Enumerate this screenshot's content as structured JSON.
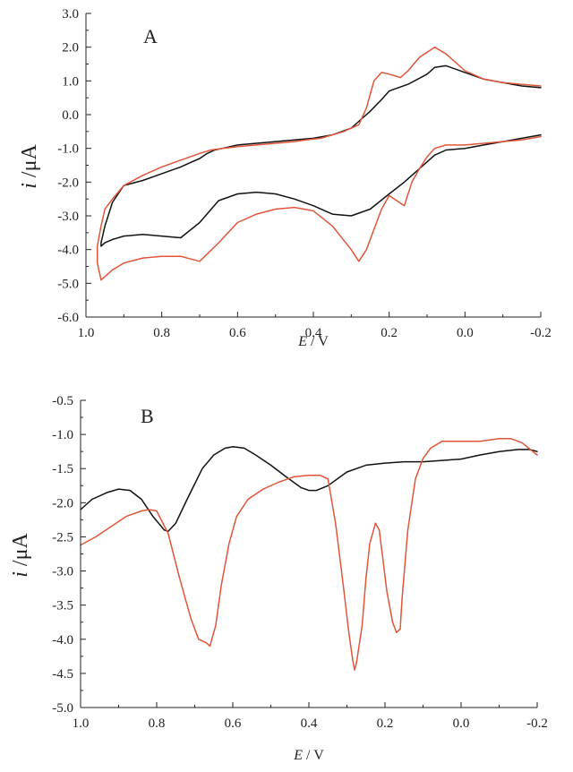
{
  "chart_data": [
    {
      "panel": "A",
      "type": "line",
      "label": "A",
      "xlabel_var": "E",
      "xlabel_unit": " / V",
      "ylabel_var": "i",
      "ylabel_unit": " /μA",
      "xlim": [
        1.0,
        -0.2
      ],
      "ylim": [
        -6.0,
        3.0
      ],
      "xticks": [
        "1.0",
        "0.8",
        "0.6",
        "0.4",
        "0.2",
        "0.0",
        "-0.2"
      ],
      "xtick_values": [
        1.0,
        0.8,
        0.6,
        0.4,
        0.2,
        0.0,
        -0.2
      ],
      "yticks": [
        "3.0",
        "2.0",
        "1.0",
        "0.0",
        "-1.0",
        "-2.0",
        "-3.0",
        "-4.0",
        "-5.0",
        "-6.0"
      ],
      "ytick_values": [
        3.0,
        2.0,
        1.0,
        0.0,
        -1.0,
        -2.0,
        -3.0,
        -4.0,
        -5.0,
        -6.0
      ],
      "series": [
        {
          "name": "black",
          "color": "#111111",
          "x": [
            -0.2,
            -0.15,
            -0.1,
            -0.05,
            0.0,
            0.05,
            0.08,
            0.12,
            0.16,
            0.2,
            0.25,
            0.3,
            0.35,
            0.4,
            0.45,
            0.5,
            0.55,
            0.6,
            0.65,
            0.7,
            0.75,
            0.8,
            0.85,
            0.9,
            0.93,
            0.95,
            0.96,
            0.96,
            0.95,
            0.93,
            0.9,
            0.85,
            0.8,
            0.75,
            0.72,
            0.7,
            0.68,
            0.66,
            0.64,
            0.62,
            0.6,
            0.55,
            0.5,
            0.45,
            0.4,
            0.35,
            0.3,
            0.28,
            0.25,
            0.22,
            0.2,
            0.15,
            0.1,
            0.08,
            0.05,
            0.0,
            -0.05,
            -0.1,
            -0.15,
            -0.2
          ],
          "y": [
            -0.6,
            -0.7,
            -0.8,
            -0.9,
            -1.0,
            -1.05,
            -1.2,
            -1.6,
            -2.0,
            -2.35,
            -2.8,
            -3.0,
            -2.95,
            -2.7,
            -2.5,
            -2.35,
            -2.3,
            -2.35,
            -2.55,
            -3.2,
            -3.65,
            -3.6,
            -3.55,
            -3.6,
            -3.7,
            -3.8,
            -3.9,
            -3.8,
            -3.3,
            -2.6,
            -2.1,
            -1.95,
            -1.75,
            -1.55,
            -1.4,
            -1.3,
            -1.15,
            -1.05,
            -1.0,
            -0.95,
            -0.9,
            -0.85,
            -0.8,
            -0.75,
            -0.7,
            -0.6,
            -0.4,
            -0.2,
            0.1,
            0.45,
            0.7,
            0.9,
            1.2,
            1.4,
            1.45,
            1.25,
            1.05,
            0.95,
            0.85,
            0.8
          ]
        },
        {
          "name": "red",
          "color": "#e0553a",
          "x": [
            -0.2,
            -0.15,
            -0.1,
            -0.05,
            0.0,
            0.05,
            0.08,
            0.1,
            0.12,
            0.14,
            0.16,
            0.18,
            0.2,
            0.22,
            0.24,
            0.26,
            0.28,
            0.3,
            0.35,
            0.4,
            0.45,
            0.5,
            0.55,
            0.6,
            0.65,
            0.7,
            0.75,
            0.8,
            0.85,
            0.9,
            0.93,
            0.95,
            0.96,
            0.97,
            0.97,
            0.96,
            0.95,
            0.93,
            0.9,
            0.85,
            0.8,
            0.75,
            0.7,
            0.67,
            0.64,
            0.6,
            0.55,
            0.5,
            0.45,
            0.42,
            0.38,
            0.35,
            0.32,
            0.3,
            0.28,
            0.26,
            0.24,
            0.22,
            0.2,
            0.17,
            0.15,
            0.12,
            0.08,
            0.05,
            0.0,
            -0.05,
            -0.1,
            -0.15,
            -0.2
          ],
          "y": [
            -0.65,
            -0.75,
            -0.8,
            -0.85,
            -0.9,
            -0.9,
            -1.0,
            -1.25,
            -1.6,
            -2.0,
            -2.7,
            -2.55,
            -2.4,
            -2.8,
            -3.4,
            -4.0,
            -4.35,
            -4.0,
            -3.3,
            -2.85,
            -2.75,
            -2.8,
            -2.95,
            -3.2,
            -3.8,
            -4.35,
            -4.2,
            -4.2,
            -4.25,
            -4.4,
            -4.6,
            -4.8,
            -4.9,
            -4.4,
            -3.9,
            -3.3,
            -2.8,
            -2.5,
            -2.1,
            -1.8,
            -1.55,
            -1.35,
            -1.15,
            -1.05,
            -1.0,
            -0.95,
            -0.9,
            -0.85,
            -0.8,
            -0.75,
            -0.7,
            -0.6,
            -0.5,
            -0.4,
            -0.3,
            0.2,
            1.0,
            1.25,
            1.2,
            1.1,
            1.3,
            1.7,
            2.0,
            1.8,
            1.3,
            1.05,
            0.95,
            0.9,
            0.85
          ]
        }
      ]
    },
    {
      "panel": "B",
      "type": "line",
      "label": "B",
      "xlabel_var": "E",
      "xlabel_unit": " / V",
      "ylabel_var": "i",
      "ylabel_unit": " /μA",
      "xlim": [
        1.0,
        -0.2
      ],
      "ylim": [
        -5.0,
        -0.5
      ],
      "xticks": [
        "1.0",
        "0.8",
        "0.6",
        "0.4",
        "0.2",
        "0.0",
        "-0.2"
      ],
      "xtick_values": [
        1.0,
        0.8,
        0.6,
        0.4,
        0.2,
        0.0,
        -0.2
      ],
      "yticks": [
        "-0.5",
        "-1.0",
        "-1.5",
        "-2.0",
        "-2.5",
        "-3.0",
        "-3.5",
        "-4.0",
        "-4.5",
        "-5.0"
      ],
      "ytick_values": [
        -0.5,
        -1.0,
        -1.5,
        -2.0,
        -2.5,
        -3.0,
        -3.5,
        -4.0,
        -4.5,
        -5.0
      ],
      "series": [
        {
          "name": "black",
          "color": "#111111",
          "x": [
            1.0,
            0.97,
            0.93,
            0.9,
            0.87,
            0.84,
            0.81,
            0.78,
            0.77,
            0.75,
            0.72,
            0.68,
            0.65,
            0.62,
            0.6,
            0.57,
            0.54,
            0.5,
            0.46,
            0.42,
            0.4,
            0.38,
            0.35,
            0.3,
            0.25,
            0.2,
            0.15,
            0.1,
            0.05,
            0.0,
            -0.05,
            -0.1,
            -0.15,
            -0.18,
            -0.2
          ],
          "y": [
            -2.1,
            -1.95,
            -1.85,
            -1.8,
            -1.82,
            -1.95,
            -2.2,
            -2.4,
            -2.42,
            -2.3,
            -1.95,
            -1.5,
            -1.3,
            -1.2,
            -1.18,
            -1.2,
            -1.3,
            -1.45,
            -1.62,
            -1.78,
            -1.82,
            -1.82,
            -1.75,
            -1.55,
            -1.45,
            -1.42,
            -1.4,
            -1.4,
            -1.38,
            -1.36,
            -1.3,
            -1.25,
            -1.22,
            -1.22,
            -1.25
          ]
        },
        {
          "name": "red",
          "color": "#e0553a",
          "x": [
            1.0,
            0.96,
            0.92,
            0.88,
            0.84,
            0.82,
            0.8,
            0.77,
            0.74,
            0.71,
            0.69,
            0.67,
            0.66,
            0.645,
            0.63,
            0.61,
            0.59,
            0.56,
            0.52,
            0.48,
            0.44,
            0.4,
            0.37,
            0.35,
            0.33,
            0.31,
            0.295,
            0.285,
            0.28,
            0.275,
            0.26,
            0.25,
            0.24,
            0.225,
            0.215,
            0.205,
            0.195,
            0.18,
            0.17,
            0.16,
            0.155,
            0.14,
            0.12,
            0.1,
            0.08,
            0.05,
            0.0,
            -0.05,
            -0.1,
            -0.13,
            -0.16,
            -0.2
          ],
          "y": [
            -2.62,
            -2.5,
            -2.35,
            -2.2,
            -2.12,
            -2.1,
            -2.12,
            -2.45,
            -3.1,
            -3.7,
            -4.0,
            -4.05,
            -4.1,
            -3.8,
            -3.2,
            -2.6,
            -2.2,
            -1.95,
            -1.8,
            -1.7,
            -1.62,
            -1.6,
            -1.6,
            -1.65,
            -2.3,
            -3.2,
            -3.9,
            -4.3,
            -4.45,
            -4.35,
            -3.8,
            -3.1,
            -2.6,
            -2.3,
            -2.4,
            -2.85,
            -3.3,
            -3.75,
            -3.9,
            -3.85,
            -3.4,
            -2.4,
            -1.65,
            -1.35,
            -1.2,
            -1.1,
            -1.1,
            -1.1,
            -1.06,
            -1.06,
            -1.12,
            -1.3
          ]
        }
      ]
    }
  ]
}
